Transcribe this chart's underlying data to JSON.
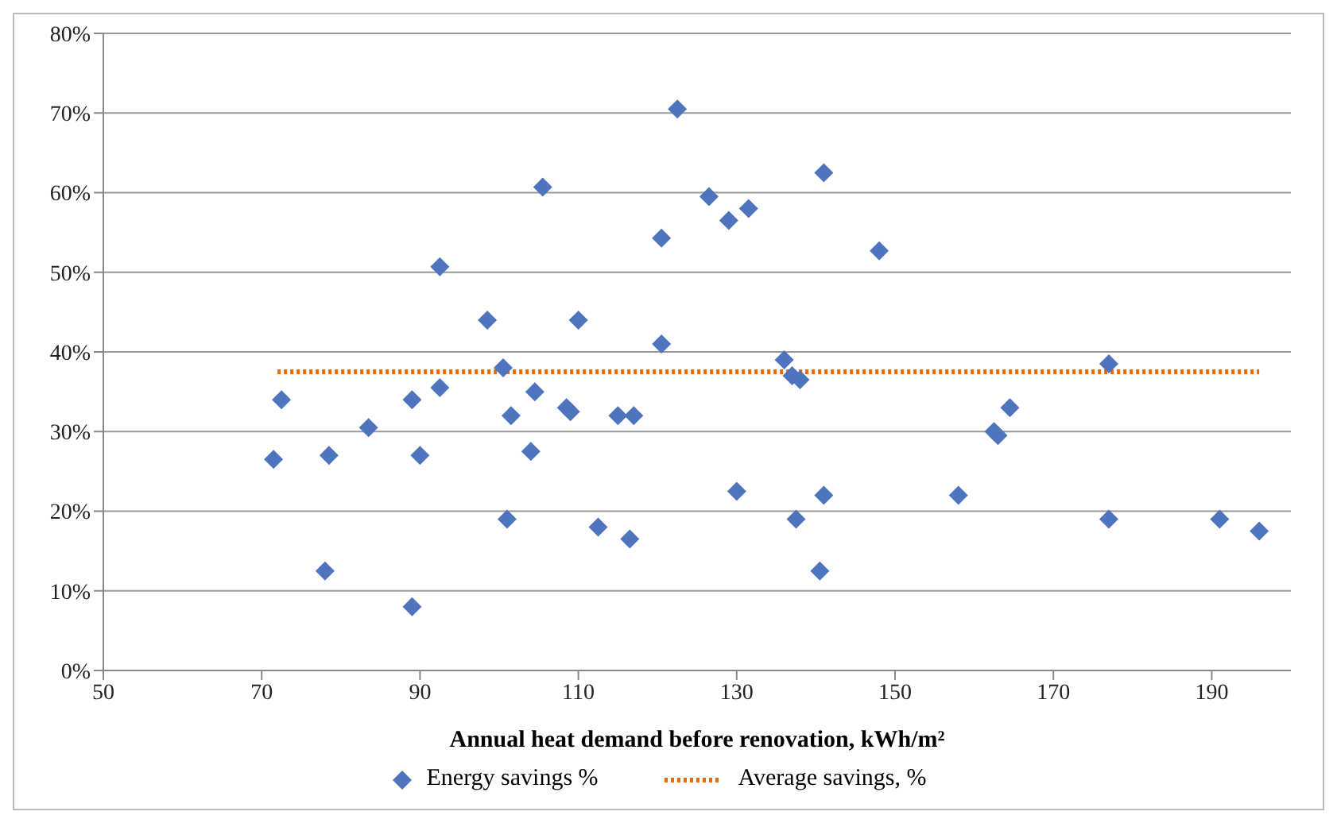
{
  "chart_data": {
    "type": "scatter",
    "xlabel": "Annual heat demand before renovation, kWh/m²",
    "xlim": [
      50,
      200
    ],
    "xticks": [
      50,
      70,
      90,
      110,
      130,
      150,
      170,
      190
    ],
    "ylim": [
      0,
      80
    ],
    "yticks": [
      {
        "value": 0,
        "label": "0%"
      },
      {
        "value": 10,
        "label": "10%"
      },
      {
        "value": 20,
        "label": "20%"
      },
      {
        "value": 30,
        "label": "30%"
      },
      {
        "value": 40,
        "label": "40%"
      },
      {
        "value": 50,
        "label": "50%"
      },
      {
        "value": 60,
        "label": "60%"
      },
      {
        "value": 70,
        "label": "70%"
      },
      {
        "value": 80,
        "label": "80%"
      }
    ],
    "grid": "y",
    "legend": "bottom",
    "series": [
      {
        "name": "Energy savings %",
        "marker": "diamond",
        "color": "#4f74be",
        "x": [
          71.5,
          72.5,
          78,
          78.5,
          83.5,
          89,
          89,
          90,
          92.5,
          92.5,
          98.5,
          100.5,
          101,
          101.5,
          104,
          104.5,
          105.5,
          108.5,
          109,
          110,
          112.5,
          115,
          116.5,
          117,
          120.5,
          120.5,
          122.5,
          126.5,
          129,
          130,
          131.5,
          136,
          137,
          137.5,
          138,
          140.5,
          141,
          141,
          148,
          158,
          162.5,
          163,
          164.5,
          177,
          177,
          191,
          196
        ],
        "values": [
          26.5,
          34,
          12.5,
          27,
          30.5,
          8,
          34,
          27,
          35.5,
          50.7,
          44,
          38,
          19,
          32,
          27.5,
          35,
          60.7,
          33,
          32.5,
          44,
          18,
          32,
          16.5,
          32,
          54.3,
          41,
          70.5,
          59.5,
          56.5,
          22.5,
          58,
          39,
          37,
          19,
          36.5,
          12.5,
          22,
          62.5,
          52.7,
          22,
          30,
          29.5,
          33,
          38.5,
          19,
          19,
          17.5
        ]
      },
      {
        "name": "Average savings, %",
        "type": "line",
        "marker": "none",
        "line_style": "dotted",
        "color": "#e36c09",
        "x": [
          72,
          196
        ],
        "values": [
          37.5,
          37.5
        ]
      }
    ]
  }
}
